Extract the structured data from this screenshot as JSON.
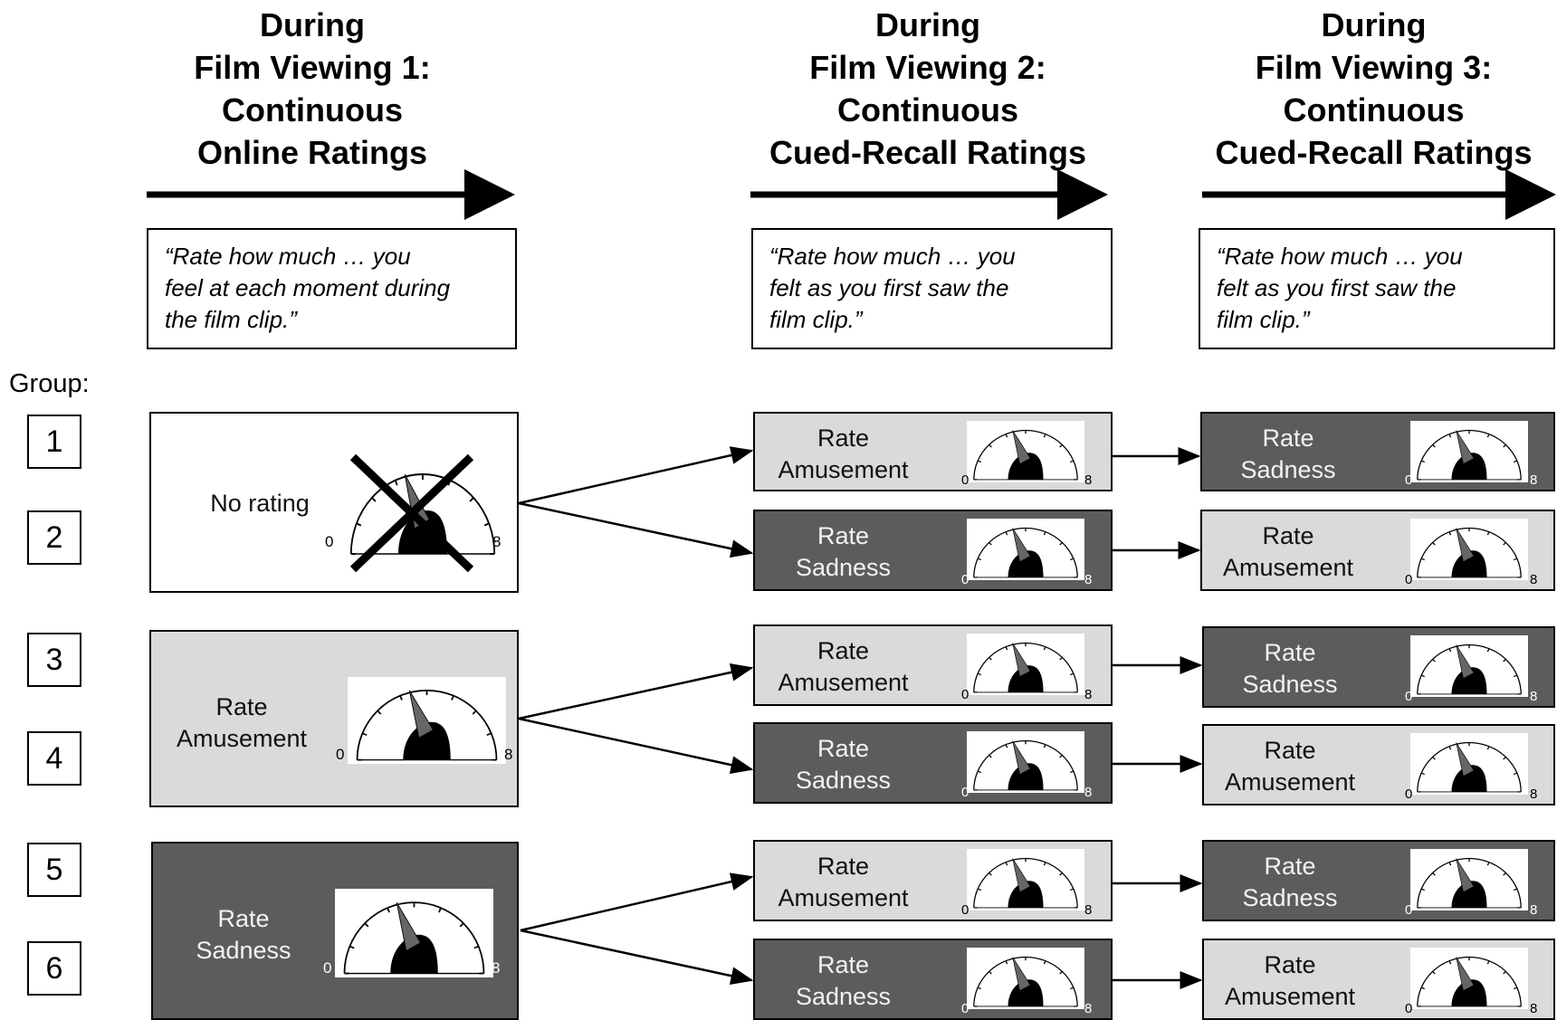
{
  "columns": [
    {
      "heading": "During\nFilm Viewing 1:\nContinuous\nOnline Ratings",
      "instruction": "“Rate how much … you\nfeel at each moment during\nthe film clip.”"
    },
    {
      "heading": "During\nFilm Viewing 2:\nContinuous\nCued-Recall Ratings",
      "instruction": "“Rate how much … you\nfelt as you first saw the\nfilm clip.”"
    },
    {
      "heading": "During\nFilm Viewing 3:\nContinuous\nCued-Recall Ratings",
      "instruction": "“Rate how much … you\nfelt as you first saw the\nfilm clip.”"
    }
  ],
  "group_caption": "Group:",
  "groups": [
    "1",
    "2",
    "3",
    "4",
    "5",
    "6"
  ],
  "scale": {
    "min": "0",
    "max": "8"
  },
  "colors": {
    "amusement": "#dadada",
    "sadness": "#5c5c5c",
    "dial": "#666666"
  },
  "viewing1": [
    {
      "label": "No rating",
      "kind": "none",
      "crossed_out": true
    },
    {
      "label": "Rate\nAmusement",
      "kind": "amuse"
    },
    {
      "label": "Rate\nSadness",
      "kind": "sad"
    }
  ],
  "viewing2": [
    {
      "label": "Rate\nAmusement",
      "kind": "amuse"
    },
    {
      "label": "Rate\nSadness",
      "kind": "sad"
    },
    {
      "label": "Rate\nAmusement",
      "kind": "amuse"
    },
    {
      "label": "Rate\nSadness",
      "kind": "sad"
    },
    {
      "label": "Rate\nAmusement",
      "kind": "amuse"
    },
    {
      "label": "Rate\nSadness",
      "kind": "sad"
    }
  ],
  "viewing3": [
    {
      "label": "Rate\nSadness",
      "kind": "sad"
    },
    {
      "label": "Rate\nAmusement",
      "kind": "amuse"
    },
    {
      "label": "Rate\nSadness",
      "kind": "sad"
    },
    {
      "label": "Rate\nAmusement",
      "kind": "amuse"
    },
    {
      "label": "Rate\nSadness",
      "kind": "sad"
    },
    {
      "label": "Rate\nAmusement",
      "kind": "amuse"
    }
  ]
}
